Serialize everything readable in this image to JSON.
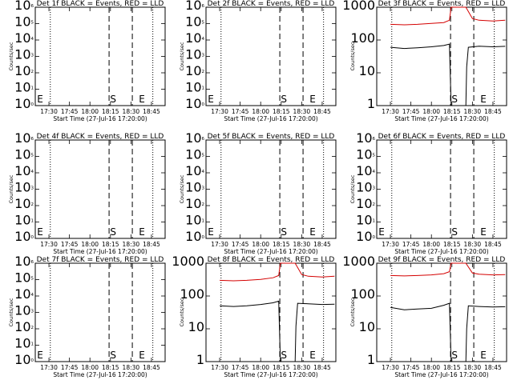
{
  "window": {
    "title": "RHESSI detector quicklook: Events (black) and LLD (red) count rates"
  },
  "chart_data": [
    {
      "type": "line",
      "title": "Det 1f BLACK = Events, RED = LLD",
      "xlabel": "Start Time (27-Jul-16 17:20:00)",
      "ylabel": "Counts/sec",
      "x_range": [
        "17:20",
        "18:55"
      ],
      "x_ticks": [
        "17:30",
        "17:45",
        "18:00",
        "18:15",
        "18:30",
        "18:45"
      ],
      "y_scale": "log",
      "ylim": [
        1,
        1000000
      ],
      "y_ticks": [
        "10^0",
        "10^1",
        "10^2",
        "10^3",
        "10^4",
        "10^5",
        "10^6"
      ],
      "markers": [
        {
          "label": "E",
          "time": "17:20"
        },
        {
          "label": "S",
          "time": "18:17"
        },
        {
          "label": "E",
          "time": "18:38"
        }
      ],
      "dashed_lines": [
        "18:14",
        "18:31"
      ],
      "dotted_lines": [
        "17:31",
        "18:46"
      ],
      "series": []
    },
    {
      "type": "line",
      "title": "Det 2f BLACK = Events, RED = LLD",
      "xlabel": "Start Time (27-Jul-16 17:20:00)",
      "ylabel": "Counts/sec",
      "x_range": [
        "17:20",
        "18:55"
      ],
      "x_ticks": [
        "17:30",
        "17:45",
        "18:00",
        "18:15",
        "18:30",
        "18:45"
      ],
      "y_scale": "log",
      "ylim": [
        1,
        1000000
      ],
      "y_ticks": [
        "10^0",
        "10^1",
        "10^2",
        "10^3",
        "10^4",
        "10^5",
        "10^6"
      ],
      "markers": [
        {
          "label": "E",
          "time": "17:20"
        },
        {
          "label": "S",
          "time": "18:17"
        },
        {
          "label": "E",
          "time": "18:38"
        }
      ],
      "dashed_lines": [
        "18:14",
        "18:31"
      ],
      "dotted_lines": [
        "17:31",
        "18:46"
      ],
      "series": []
    },
    {
      "type": "line",
      "title": "Det 3f BLACK = Events, RED = LLD",
      "xlabel": "Start Time (27-Jul-16 17:20:00)",
      "ylabel": "Counts/sec",
      "x_range": [
        "17:20",
        "18:55"
      ],
      "x_ticks": [
        "17:30",
        "17:45",
        "18:00",
        "18:15",
        "18:30",
        "18:45"
      ],
      "y_scale": "log",
      "ylim": [
        1,
        1000
      ],
      "y_ticks": [
        "1",
        "10",
        "100",
        "1000"
      ],
      "markers": [
        {
          "label": "S",
          "time": "18:17"
        },
        {
          "label": "E",
          "time": "18:38"
        }
      ],
      "dashed_lines": [
        "18:14",
        "18:31"
      ],
      "dotted_lines": [
        "17:31",
        "18:46"
      ],
      "series": [
        {
          "color": "#d40000",
          "data": [
            [
              17.5,
              300
            ],
            [
              17.67,
              290
            ],
            [
              17.83,
              300
            ],
            [
              18.0,
              320
            ],
            [
              18.15,
              340
            ],
            [
              18.22,
              400
            ],
            [
              18.24,
              1000
            ],
            [
              18.42,
              1000
            ],
            [
              18.5,
              450
            ],
            [
              18.58,
              400
            ],
            [
              18.75,
              380
            ],
            [
              18.9,
              400
            ]
          ]
        },
        {
          "color": "#000000",
          "data": [
            [
              17.5,
              60
            ],
            [
              17.67,
              55
            ],
            [
              17.83,
              58
            ],
            [
              18.0,
              62
            ],
            [
              18.15,
              68
            ],
            [
              18.22,
              75
            ],
            [
              18.24,
              0
            ],
            [
              18.42,
              0
            ],
            [
              18.43,
              15
            ],
            [
              18.45,
              60
            ],
            [
              18.58,
              65
            ],
            [
              18.75,
              62
            ],
            [
              18.9,
              64
            ]
          ]
        }
      ]
    },
    {
      "type": "line",
      "title": "Det 4f BLACK = Events, RED = LLD",
      "xlabel": "Start Time (27-Jul-16 17:20:00)",
      "ylabel": "Counts/sec",
      "x_range": [
        "17:20",
        "18:55"
      ],
      "x_ticks": [
        "17:30",
        "17:45",
        "18:00",
        "18:15",
        "18:30",
        "18:45"
      ],
      "y_scale": "log",
      "ylim": [
        1,
        1000000
      ],
      "y_ticks": [
        "10^0",
        "10^1",
        "10^2",
        "10^3",
        "10^4",
        "10^5",
        "10^6"
      ],
      "markers": [
        {
          "label": "E",
          "time": "17:20"
        },
        {
          "label": "S",
          "time": "18:17"
        },
        {
          "label": "E",
          "time": "18:38"
        }
      ],
      "dashed_lines": [
        "18:14",
        "18:31"
      ],
      "dotted_lines": [
        "17:31",
        "18:46"
      ],
      "series": []
    },
    {
      "type": "line",
      "title": "Det 5f BLACK = Events, RED = LLD",
      "xlabel": "Start Time (27-Jul-16 17:20:00)",
      "ylabel": "Counts/sec",
      "x_range": [
        "17:20",
        "18:55"
      ],
      "x_ticks": [
        "17:30",
        "17:45",
        "18:00",
        "18:15",
        "18:30",
        "18:45"
      ],
      "y_scale": "log",
      "ylim": [
        1,
        1000000
      ],
      "y_ticks": [
        "10^0",
        "10^1",
        "10^2",
        "10^3",
        "10^4",
        "10^5",
        "10^6"
      ],
      "markers": [
        {
          "label": "E",
          "time": "17:20"
        },
        {
          "label": "S",
          "time": "18:17"
        },
        {
          "label": "E",
          "time": "18:38"
        }
      ],
      "dashed_lines": [
        "18:14",
        "18:31"
      ],
      "dotted_lines": [
        "17:31",
        "18:46"
      ],
      "series": []
    },
    {
      "type": "line",
      "title": "Det 6f BLACK = Events, RED = LLD",
      "xlabel": "Start Time (27-Jul-16 17:20:00)",
      "ylabel": "Counts/sec",
      "x_range": [
        "17:20",
        "18:55"
      ],
      "x_ticks": [
        "17:30",
        "17:45",
        "18:00",
        "18:15",
        "18:30",
        "18:45"
      ],
      "y_scale": "log",
      "ylim": [
        1,
        1000000
      ],
      "y_ticks": [
        "10^0",
        "10^1",
        "10^2",
        "10^3",
        "10^4",
        "10^5",
        "10^6"
      ],
      "markers": [
        {
          "label": "E",
          "time": "17:20"
        },
        {
          "label": "S",
          "time": "18:17"
        },
        {
          "label": "E",
          "time": "18:38"
        }
      ],
      "dashed_lines": [
        "18:14",
        "18:31"
      ],
      "dotted_lines": [
        "17:31",
        "18:46"
      ],
      "series": []
    },
    {
      "type": "line",
      "title": "Det 7f BLACK = Events, RED = LLD",
      "xlabel": "Start Time (27-Jul-16 17:20:00)",
      "ylabel": "Counts/sec",
      "x_range": [
        "17:20",
        "18:55"
      ],
      "x_ticks": [
        "17:30",
        "17:45",
        "18:00",
        "18:15",
        "18:30",
        "18:45"
      ],
      "y_scale": "log",
      "ylim": [
        1,
        1000000
      ],
      "y_ticks": [
        "10^0",
        "10^1",
        "10^2",
        "10^3",
        "10^4",
        "10^5",
        "10^6"
      ],
      "markers": [
        {
          "label": "E",
          "time": "17:20"
        },
        {
          "label": "S",
          "time": "18:17"
        },
        {
          "label": "E",
          "time": "18:38"
        }
      ],
      "dashed_lines": [
        "18:14",
        "18:31"
      ],
      "dotted_lines": [
        "17:31",
        "18:46"
      ],
      "series": []
    },
    {
      "type": "line",
      "title": "Det 8f BLACK = Events, RED = LLD",
      "xlabel": "Start Time (27-Jul-16 17:20:00)",
      "ylabel": "Counts/sec",
      "x_range": [
        "17:20",
        "18:55"
      ],
      "x_ticks": [
        "17:30",
        "17:45",
        "18:00",
        "18:15",
        "18:30",
        "18:45"
      ],
      "y_scale": "log",
      "ylim": [
        1,
        1000
      ],
      "y_ticks": [
        "1",
        "10",
        "100",
        "1000"
      ],
      "markers": [
        {
          "label": "S",
          "time": "18:17"
        },
        {
          "label": "E",
          "time": "18:38"
        }
      ],
      "dashed_lines": [
        "18:14",
        "18:31"
      ],
      "dotted_lines": [
        "17:31",
        "18:46"
      ],
      "series": [
        {
          "color": "#d40000",
          "data": [
            [
              17.5,
              300
            ],
            [
              17.67,
              290
            ],
            [
              17.83,
              300
            ],
            [
              18.0,
              320
            ],
            [
              18.15,
              360
            ],
            [
              18.22,
              420
            ],
            [
              18.24,
              1000
            ],
            [
              18.42,
              1000
            ],
            [
              18.5,
              450
            ],
            [
              18.58,
              400
            ],
            [
              18.75,
              380
            ],
            [
              18.9,
              400
            ]
          ]
        },
        {
          "color": "#000000",
          "data": [
            [
              17.5,
              50
            ],
            [
              17.67,
              48
            ],
            [
              17.83,
              50
            ],
            [
              18.0,
              55
            ],
            [
              18.15,
              62
            ],
            [
              18.22,
              70
            ],
            [
              18.24,
              0
            ],
            [
              18.42,
              0
            ],
            [
              18.43,
              12
            ],
            [
              18.45,
              60
            ],
            [
              18.58,
              58
            ],
            [
              18.75,
              55
            ],
            [
              18.9,
              56
            ]
          ]
        }
      ]
    },
    {
      "type": "line",
      "title": "Det 9f BLACK = Events, RED = LLD",
      "xlabel": "Start Time (27-Jul-16 17:20:00)",
      "ylabel": "Counts/sec",
      "x_range": [
        "17:20",
        "18:55"
      ],
      "x_ticks": [
        "17:30",
        "17:45",
        "18:00",
        "18:15",
        "18:30",
        "18:45"
      ],
      "y_scale": "log",
      "ylim": [
        1,
        1000
      ],
      "y_ticks": [
        "1",
        "10",
        "100",
        "1000"
      ],
      "markers": [
        {
          "label": "S",
          "time": "18:17"
        },
        {
          "label": "E",
          "time": "18:38"
        }
      ],
      "dashed_lines": [
        "18:14",
        "18:31"
      ],
      "dotted_lines": [
        "17:31",
        "18:46"
      ],
      "series": [
        {
          "color": "#d40000",
          "data": [
            [
              17.5,
              420
            ],
            [
              17.67,
              410
            ],
            [
              17.83,
              420
            ],
            [
              18.0,
              440
            ],
            [
              18.15,
              480
            ],
            [
              18.22,
              550
            ],
            [
              18.24,
              1000
            ],
            [
              18.42,
              1000
            ],
            [
              18.5,
              500
            ],
            [
              18.58,
              460
            ],
            [
              18.75,
              440
            ],
            [
              18.9,
              450
            ]
          ]
        },
        {
          "color": "#000000",
          "data": [
            [
              17.5,
              45
            ],
            [
              17.67,
              38
            ],
            [
              17.83,
              40
            ],
            [
              18.0,
              42
            ],
            [
              18.15,
              52
            ],
            [
              18.22,
              60
            ],
            [
              18.24,
              0
            ],
            [
              18.42,
              0
            ],
            [
              18.43,
              10
            ],
            [
              18.45,
              50
            ],
            [
              18.58,
              48
            ],
            [
              18.75,
              46
            ],
            [
              18.9,
              47
            ]
          ]
        }
      ]
    }
  ]
}
